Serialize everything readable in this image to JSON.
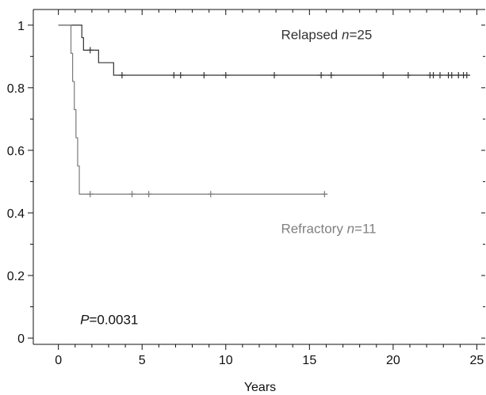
{
  "chart_data": {
    "type": "line",
    "title": "",
    "xlabel": "Years",
    "ylabel": "",
    "xlim": [
      -1.5,
      25.5
    ],
    "ylim": [
      -0.02,
      1.05
    ],
    "x_ticks": [
      0,
      5,
      10,
      15,
      20,
      25
    ],
    "x_tick_labels": [
      "0",
      "5",
      "10",
      "15",
      "20",
      "25"
    ],
    "x_minor_ticks": [
      1,
      2,
      3,
      4,
      6,
      7,
      8,
      9,
      11,
      12,
      13,
      14,
      16,
      17,
      18,
      19,
      21,
      22,
      23,
      24
    ],
    "y_ticks": [
      0,
      0.2,
      0.4,
      0.6,
      0.8,
      1
    ],
    "y_tick_labels": [
      "0",
      "0.2",
      "0.4",
      "0.6",
      "0.8",
      "1"
    ],
    "y_minor_ticks": [
      0.1,
      0.3,
      0.5,
      0.7,
      0.9
    ],
    "grid": false,
    "series": [
      {
        "name": "Relapsed",
        "color": "#333333",
        "steps": [
          [
            0,
            1.0
          ],
          [
            1.4,
            0.96
          ],
          [
            1.5,
            0.92
          ],
          [
            2.4,
            0.88
          ],
          [
            3.3,
            0.84
          ],
          [
            24.6,
            0.84
          ]
        ],
        "censored": [
          [
            1.9,
            0.92
          ],
          [
            3.8,
            0.84
          ],
          [
            6.9,
            0.84
          ],
          [
            7.3,
            0.84
          ],
          [
            8.7,
            0.84
          ],
          [
            10.0,
            0.84
          ],
          [
            12.9,
            0.84
          ],
          [
            15.7,
            0.84
          ],
          [
            16.3,
            0.84
          ],
          [
            19.4,
            0.84
          ],
          [
            20.9,
            0.84
          ],
          [
            22.2,
            0.84
          ],
          [
            22.4,
            0.84
          ],
          [
            22.8,
            0.84
          ],
          [
            23.3,
            0.84
          ],
          [
            23.5,
            0.84
          ],
          [
            23.9,
            0.84
          ],
          [
            24.2,
            0.84
          ],
          [
            24.4,
            0.84
          ]
        ]
      },
      {
        "name": "Refractory",
        "color": "#7a7a7a",
        "steps": [
          [
            0,
            1.0
          ],
          [
            0.75,
            0.91
          ],
          [
            0.85,
            0.82
          ],
          [
            0.95,
            0.73
          ],
          [
            1.05,
            0.64
          ],
          [
            1.15,
            0.55
          ],
          [
            1.25,
            0.46
          ],
          [
            16.0,
            0.46
          ]
        ],
        "censored": [
          [
            1.9,
            0.46
          ],
          [
            4.4,
            0.46
          ],
          [
            5.4,
            0.46
          ],
          [
            9.1,
            0.46
          ],
          [
            15.9,
            0.46
          ]
        ]
      }
    ],
    "annotations": [
      {
        "prefix": "Relapsed ",
        "italic": "n",
        "suffix": "=25",
        "x": 13.3,
        "y": 0.955,
        "color": "#333333"
      },
      {
        "prefix": "Refractory ",
        "italic": "n",
        "suffix": "=11",
        "x": 13.3,
        "y": 0.335,
        "color": "#808080"
      },
      {
        "prefix": "",
        "italic": "P",
        "suffix": "=0.0031",
        "x": 1.3,
        "y": 0.045,
        "color": "#111111"
      }
    ]
  }
}
